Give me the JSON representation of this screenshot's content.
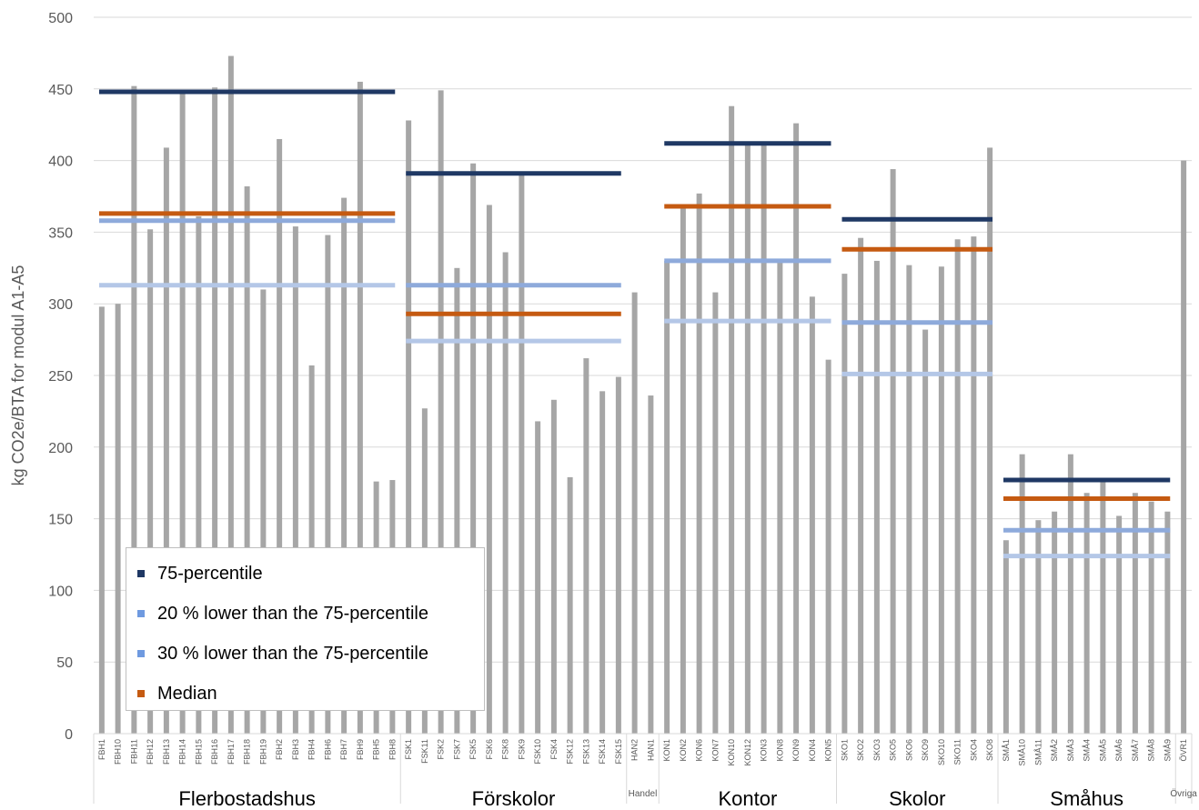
{
  "chart_data": {
    "type": "bar",
    "ylabel": "kg CO2e/BTA for modul A1-A5",
    "ylim": [
      0,
      500
    ],
    "yticks": [
      0,
      50,
      100,
      150,
      200,
      250,
      300,
      350,
      400,
      450,
      500
    ],
    "bar_color": "#a6a6a6",
    "groups": [
      {
        "name": "Flerbostadshus",
        "categories": [
          "FBH1",
          "FBH10",
          "FBH11",
          "FBH12",
          "FBH13",
          "FBH14",
          "FBH15",
          "FBH16",
          "FBH17",
          "FBH18",
          "FBH19",
          "FBH2",
          "FBH3",
          "FBH4",
          "FBH6",
          "FBH7",
          "FBH9",
          "FBH5",
          "FBH8"
        ],
        "values": [
          298,
          300,
          452,
          352,
          409,
          447,
          361,
          451,
          473,
          382,
          310,
          415,
          354,
          257,
          348,
          374,
          455,
          176,
          177
        ],
        "lines": {
          "p75": 448,
          "p75_minus20": 358,
          "p75_minus30": 313,
          "median": 363
        }
      },
      {
        "name": "Förskolor",
        "categories": [
          "FSK1",
          "FSK11",
          "FSK2",
          "FSK7",
          "FSK5",
          "FSK6",
          "FSK8",
          "FSK9",
          "FSK10",
          "FSK4",
          "FSK12",
          "FSK13",
          "FSK14",
          "FSK15"
        ],
        "values": [
          428,
          227,
          449,
          325,
          398,
          369,
          336,
          391,
          218,
          233,
          179,
          262,
          239,
          249
        ],
        "lines": {
          "p75": 391,
          "p75_minus20": 313,
          "p75_minus30": 274,
          "median": 293
        }
      },
      {
        "name": "Handel",
        "categories": [
          "HAN2",
          "HAN1"
        ],
        "values": [
          308,
          236
        ],
        "lines": null
      },
      {
        "name": "Kontor",
        "categories": [
          "KON1",
          "KON2",
          "KON6",
          "KON7",
          "KON10",
          "KON12",
          "KON3",
          "KON8",
          "KON9",
          "KON4",
          "KON5"
        ],
        "values": [
          330,
          368,
          377,
          308,
          438,
          412,
          412,
          330,
          426,
          305,
          261
        ],
        "lines": {
          "p75": 412,
          "p75_minus20": 330,
          "p75_minus30": 288,
          "median": 368
        }
      },
      {
        "name": "Skolor",
        "categories": [
          "SKO1",
          "SKO2",
          "SKO3",
          "SKO5",
          "SKO6",
          "SKO9",
          "SKO10",
          "SKO11",
          "SKO4",
          "SKO8"
        ],
        "values": [
          321,
          346,
          330,
          394,
          327,
          282,
          326,
          345,
          347,
          409
        ],
        "lines": {
          "p75": 359,
          "p75_minus20": 287,
          "p75_minus30": 251,
          "median": 338
        }
      },
      {
        "name": "Småhus",
        "categories": [
          "SMÅ1",
          "SMÅ10",
          "SMÅ11",
          "SMÅ2",
          "SMÅ3",
          "SMÅ4",
          "SMÅ5",
          "SMÅ6",
          "SMÅ7",
          "SMÅ8",
          "SMÅ9"
        ],
        "values": [
          135,
          195,
          149,
          155,
          195,
          168,
          177,
          152,
          168,
          162,
          155
        ],
        "lines": {
          "p75": 177,
          "p75_minus20": 142,
          "p75_minus30": 124,
          "median": 164
        }
      },
      {
        "name": "Övriga",
        "categories": [
          "ÖVR1"
        ],
        "values": [
          400
        ],
        "lines": null
      }
    ],
    "series": [
      {
        "key": "p75",
        "name": "75-percentile",
        "color": "#1f3864",
        "legend_color": "#1f3864"
      },
      {
        "key": "p75_minus20",
        "name": "20 % lower than the 75-percentile",
        "color": "#8eaadb",
        "legend_color": "#6f9ae0"
      },
      {
        "key": "p75_minus30",
        "name": "30 % lower than the 75-percentile",
        "color": "#b4c7e7",
        "legend_color": "#6f9ae0"
      },
      {
        "key": "median",
        "name": "Median",
        "color": "#c55a11",
        "legend_color": "#c55a11"
      }
    ],
    "legend_position": "bottom-left"
  }
}
